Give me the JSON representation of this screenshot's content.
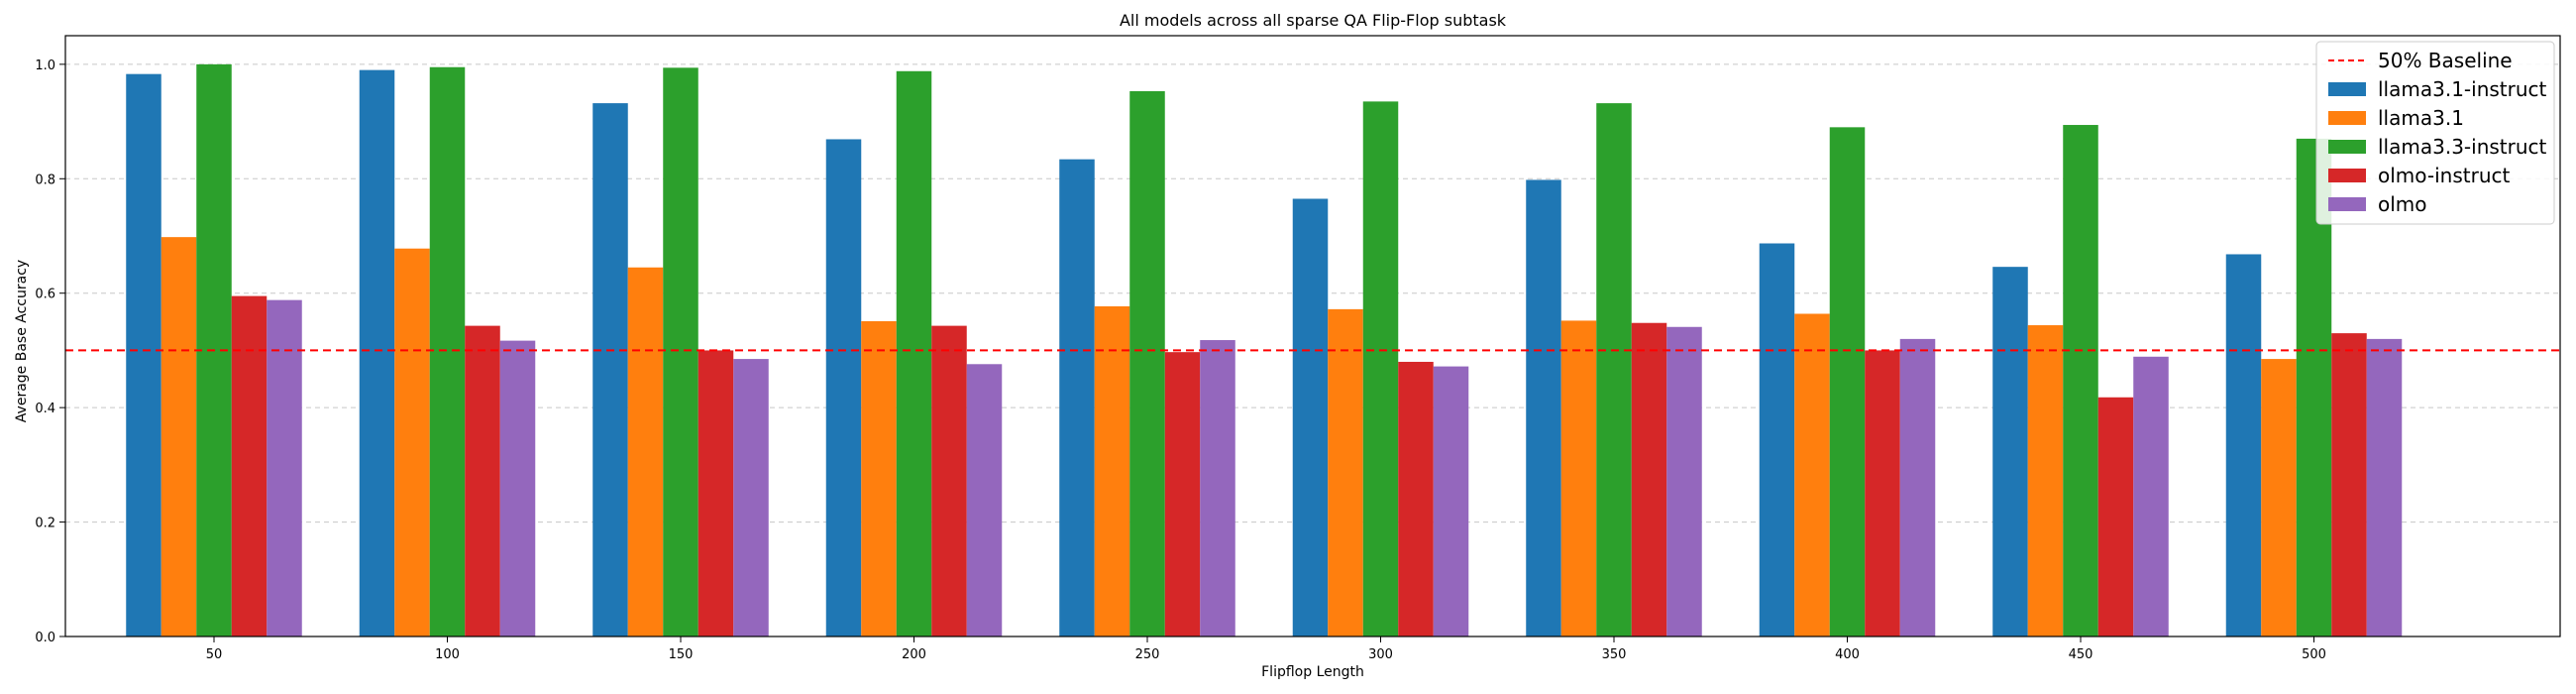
{
  "chart_data": {
    "type": "bar",
    "title": "All models across all sparse QA Flip-Flop subtask",
    "xlabel": "Flipflop Length",
    "ylabel": "Average Base Accuracy",
    "ylim": [
      0,
      1.05
    ],
    "yticks": [
      "0.0",
      "0.2",
      "0.4",
      "0.6",
      "0.8",
      "1.0"
    ],
    "grid": "horizontal dashed",
    "legend_position": "top-right",
    "categories": [
      "50",
      "100",
      "150",
      "200",
      "250",
      "300",
      "350",
      "400",
      "450",
      "500"
    ],
    "series": [
      {
        "name": "llama3.1-instruct",
        "color": "#1f77b4",
        "values": [
          0.983,
          0.99,
          0.932,
          0.869,
          0.834,
          0.765,
          0.798,
          0.687,
          0.646,
          0.668
        ]
      },
      {
        "name": "llama3.1",
        "color": "#ff7f0e",
        "values": [
          0.698,
          0.678,
          0.645,
          0.551,
          0.577,
          0.572,
          0.552,
          0.564,
          0.544,
          0.485
        ]
      },
      {
        "name": "llama3.3-instruct",
        "color": "#2ca02c",
        "values": [
          1.0,
          0.995,
          0.994,
          0.988,
          0.953,
          0.935,
          0.932,
          0.89,
          0.894,
          0.87
        ]
      },
      {
        "name": "olmo-instruct",
        "color": "#d62728",
        "values": [
          0.595,
          0.543,
          0.5,
          0.543,
          0.497,
          0.48,
          0.548,
          0.5,
          0.418,
          0.53
        ]
      },
      {
        "name": "olmo",
        "color": "#9467bd",
        "values": [
          0.588,
          0.517,
          0.485,
          0.476,
          0.518,
          0.472,
          0.541,
          0.52,
          0.489,
          0.52
        ]
      }
    ],
    "baseline": {
      "name": "50% Baseline",
      "value": 0.5,
      "color": "#ff0000",
      "style": "dashed"
    }
  }
}
